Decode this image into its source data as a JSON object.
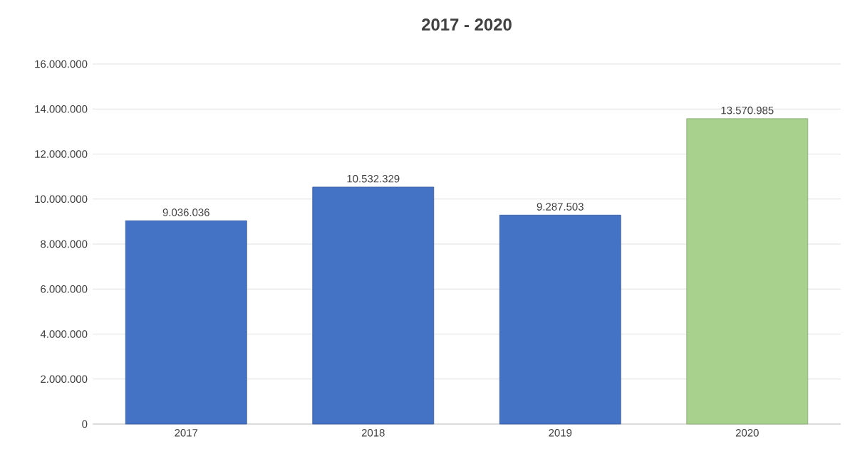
{
  "chart_data": {
    "type": "bar",
    "title": "2017 - 2020",
    "categories": [
      "2017",
      "2018",
      "2019",
      "2020"
    ],
    "values": [
      9036036,
      10532329,
      9287503,
      13570985
    ],
    "colors": [
      "#4472c4",
      "#4472c4",
      "#4472c4",
      "#a9d18e"
    ],
    "value_labels": [
      "9.036.036",
      "10.532.329",
      "9.287.503",
      "13.570.985"
    ],
    "ylim": [
      0,
      16000000
    ],
    "yticks": [
      {
        "value": 0,
        "label": "0"
      },
      {
        "value": 2000000,
        "label": "2.000.000"
      },
      {
        "value": 4000000,
        "label": "4.000.000"
      },
      {
        "value": 6000000,
        "label": "6.000.000"
      },
      {
        "value": 8000000,
        "label": "8.000.000"
      },
      {
        "value": 10000000,
        "label": "10.000.000"
      },
      {
        "value": 12000000,
        "label": "12.000.000"
      },
      {
        "value": 14000000,
        "label": "14.000.000"
      },
      {
        "value": 16000000,
        "label": "16.000.000"
      }
    ],
    "grid": "y"
  }
}
